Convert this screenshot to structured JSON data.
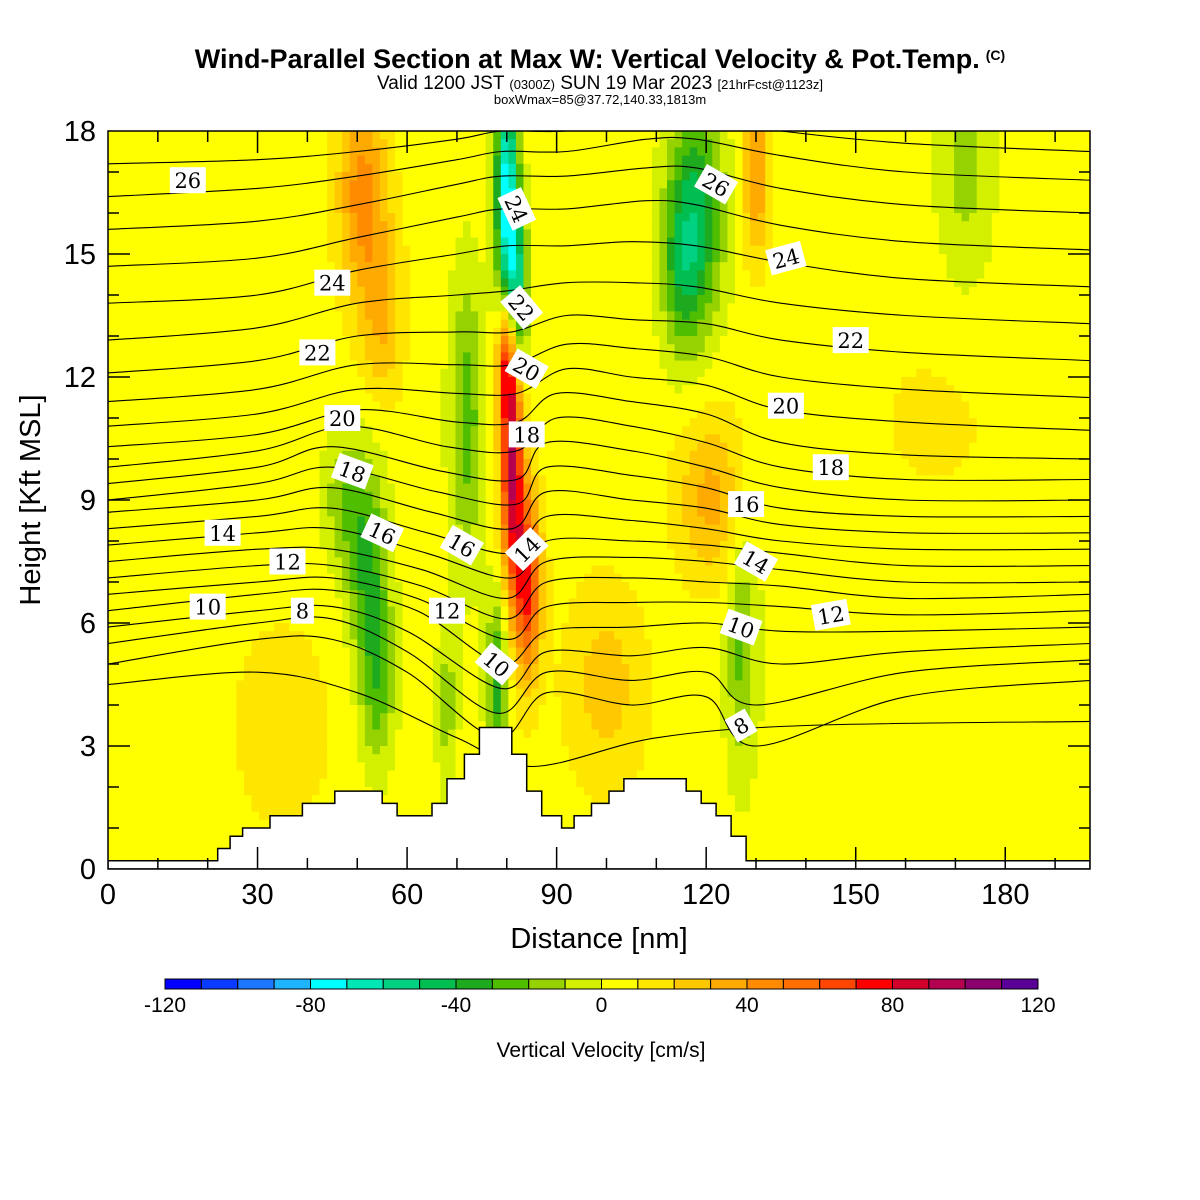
{
  "header": {
    "title": "Wind-Parallel Section at Max W: Vertical Velocity & Pot.Temp.",
    "title_mark": "(C)",
    "valid_prefix": "Valid 1200 JST",
    "valid_utc": "(0300Z)",
    "valid_date": "SUN 19 Mar 2023",
    "forecast_info": "[21hrFcst@1123z]",
    "box_info": "boxWmax=85@37.72,140.33,1813m"
  },
  "chart_data": {
    "type": "heatmap",
    "xlabel": "Distance [nm]",
    "ylabel": "Height [Kft MSL]",
    "xlim": [
      0,
      197
    ],
    "ylim": [
      0,
      18
    ],
    "x_ticks": [
      "0",
      "30",
      "60",
      "90",
      "120",
      "150",
      "180"
    ],
    "x_tick_values": [
      0,
      30,
      60,
      90,
      120,
      150,
      180
    ],
    "y_ticks": [
      "0",
      "3",
      "6",
      "9",
      "12",
      "15",
      "18"
    ],
    "y_tick_values": [
      0,
      3,
      6,
      9,
      12,
      15,
      18
    ],
    "background_w": 5,
    "w_features": [
      {
        "x": 52,
        "y": 7.5,
        "sx": 3,
        "sy": 1.8,
        "v": -35
      },
      {
        "x": 54,
        "y": 4.5,
        "sx": 2.5,
        "sy": 1.5,
        "v": -30
      },
      {
        "x": 47,
        "y": 9.0,
        "sx": 3,
        "sy": 1.2,
        "v": -20
      },
      {
        "x": 72,
        "y": 11.0,
        "sx": 2.5,
        "sy": 2.5,
        "v": -30
      },
      {
        "x": 68,
        "y": 4.0,
        "sx": 1.5,
        "sy": 1.5,
        "v": -20
      },
      {
        "x": 80,
        "y": 16.5,
        "sx": 1.6,
        "sy": 2.0,
        "v": -80
      },
      {
        "x": 82,
        "y": 14.0,
        "sx": 1.6,
        "sy": 1.5,
        "v": -55
      },
      {
        "x": 78,
        "y": 4.5,
        "sx": 1.5,
        "sy": 1.5,
        "v": -40
      },
      {
        "x": 81,
        "y": 10.0,
        "sx": 1.6,
        "sy": 2.0,
        "v": 85
      },
      {
        "x": 84,
        "y": 7.0,
        "sx": 2.0,
        "sy": 1.6,
        "v": 70
      },
      {
        "x": 80,
        "y": 12.5,
        "sx": 1.3,
        "sy": 1.0,
        "v": 60
      },
      {
        "x": 51,
        "y": 16.5,
        "sx": 3.5,
        "sy": 1.8,
        "v": 40
      },
      {
        "x": 55,
        "y": 13.5,
        "sx": 3.0,
        "sy": 1.5,
        "v": 25
      },
      {
        "x": 118,
        "y": 16.0,
        "sx": 4.0,
        "sy": 2.0,
        "v": -45
      },
      {
        "x": 115,
        "y": 14.5,
        "sx": 3.0,
        "sy": 1.5,
        "v": -25
      },
      {
        "x": 127,
        "y": 5.5,
        "sx": 2.0,
        "sy": 2.2,
        "v": -25
      },
      {
        "x": 121,
        "y": 9.0,
        "sx": 5.0,
        "sy": 1.5,
        "v": 30
      },
      {
        "x": 130,
        "y": 17.0,
        "sx": 2.0,
        "sy": 1.5,
        "v": 35
      },
      {
        "x": 100,
        "y": 4.5,
        "sx": 6.0,
        "sy": 1.8,
        "v": 20
      },
      {
        "x": 35,
        "y": 3.5,
        "sx": 10.0,
        "sy": 2.5,
        "v": 8
      },
      {
        "x": 172,
        "y": 17.0,
        "sx": 4.0,
        "sy": 2.0,
        "v": -18
      },
      {
        "x": 150,
        "y": 6.0,
        "sx": 25.0,
        "sy": 3.0,
        "v": -5
      },
      {
        "x": 165,
        "y": 10.5,
        "sx": 12.0,
        "sy": 2.0,
        "v": 8
      }
    ],
    "terrain": {
      "x": [
        0,
        22,
        22,
        24.5,
        24.5,
        27,
        27,
        32.5,
        32.5,
        39,
        39,
        45.5,
        45.5,
        55,
        55,
        58,
        58,
        65,
        65,
        68,
        68,
        71.5,
        71.5,
        74.5,
        74.5,
        81,
        81,
        84,
        84,
        87,
        87,
        91,
        91,
        93.5,
        93.5,
        97,
        97,
        100.5,
        100.5,
        103.5,
        103.5,
        116,
        116,
        119,
        119,
        122,
        122,
        125,
        125,
        128,
        128,
        130,
        197
      ],
      "y": [
        0.2,
        0.2,
        0.5,
        0.5,
        0.8,
        0.8,
        1.0,
        1.0,
        1.3,
        1.3,
        1.6,
        1.6,
        1.9,
        1.9,
        1.6,
        1.6,
        1.3,
        1.3,
        1.6,
        1.6,
        2.2,
        2.2,
        2.8,
        2.8,
        3.45,
        3.45,
        2.8,
        2.8,
        1.9,
        1.9,
        1.3,
        1.3,
        1.0,
        1.0,
        1.3,
        1.3,
        1.6,
        1.6,
        1.9,
        1.9,
        2.2,
        2.2,
        1.9,
        1.9,
        1.6,
        1.6,
        1.3,
        1.3,
        0.8,
        0.8,
        0.2,
        0.2,
        0.2
      ]
    },
    "theta_contours": [
      {
        "x": [
          0,
          30,
          50,
          70,
          85,
          110,
          140,
          197
        ],
        "y": [
          4.5,
          4.8,
          4.3,
          3.2,
          2.5,
          3.2,
          3.5,
          3.6
        ]
      },
      {
        "x": [
          0,
          30,
          45,
          60,
          78,
          88,
          105,
          120,
          130,
          160,
          197
        ],
        "y": [
          5.0,
          5.6,
          5.6,
          4.8,
          3.2,
          4.3,
          4.0,
          4.2,
          3.0,
          4.2,
          4.6
        ]
      },
      {
        "x": [
          0,
          30,
          45,
          60,
          78,
          88,
          105,
          120,
          130,
          160,
          197
        ],
        "y": [
          5.5,
          6.0,
          6.1,
          5.3,
          3.8,
          4.8,
          4.6,
          4.8,
          4.0,
          4.8,
          5.1
        ]
      },
      {
        "x": [
          0,
          30,
          45,
          60,
          79,
          88,
          105,
          120,
          135,
          160,
          197
        ],
        "y": [
          5.9,
          6.3,
          6.4,
          5.8,
          4.4,
          5.3,
          5.2,
          5.4,
          5.0,
          5.3,
          5.5
        ]
      },
      {
        "x": [
          0,
          30,
          45,
          62,
          79,
          88,
          105,
          120,
          135,
          160,
          197
        ],
        "y": [
          6.3,
          6.7,
          6.8,
          6.3,
          5.0,
          5.8,
          5.9,
          6.0,
          5.8,
          5.8,
          5.9
        ]
      },
      {
        "x": [
          0,
          30,
          45,
          62,
          80,
          88,
          105,
          120,
          135,
          160,
          197
        ],
        "y": [
          6.7,
          7.0,
          7.1,
          6.6,
          5.6,
          6.4,
          6.5,
          6.5,
          6.4,
          6.2,
          6.3
        ]
      },
      {
        "x": [
          0,
          30,
          45,
          63,
          80,
          88,
          105,
          120,
          135,
          160,
          197
        ],
        "y": [
          7.1,
          7.4,
          7.4,
          6.9,
          6.1,
          7.0,
          7.1,
          7.0,
          6.9,
          6.6,
          6.7
        ]
      },
      {
        "x": [
          0,
          30,
          45,
          63,
          80,
          88,
          105,
          120,
          135,
          160,
          197
        ],
        "y": [
          7.5,
          7.8,
          7.8,
          7.3,
          6.6,
          7.5,
          7.6,
          7.5,
          7.3,
          7.0,
          7.0
        ]
      },
      {
        "x": [
          0,
          30,
          45,
          64,
          81,
          88,
          105,
          120,
          135,
          160,
          197
        ],
        "y": [
          7.9,
          8.2,
          8.3,
          7.7,
          7.1,
          8.0,
          8.0,
          7.9,
          7.7,
          7.4,
          7.4
        ]
      },
      {
        "x": [
          0,
          30,
          45,
          64,
          81,
          88,
          105,
          120,
          135,
          160,
          197
        ],
        "y": [
          8.3,
          8.6,
          8.8,
          8.2,
          7.7,
          8.6,
          8.5,
          8.3,
          8.0,
          7.8,
          7.8
        ]
      },
      {
        "x": [
          0,
          30,
          45,
          65,
          81,
          88,
          105,
          120,
          135,
          160,
          197
        ],
        "y": [
          8.7,
          9.0,
          9.3,
          8.7,
          8.3,
          9.2,
          9.0,
          8.8,
          8.4,
          8.2,
          8.2
        ]
      },
      {
        "x": [
          0,
          30,
          45,
          66,
          82,
          88,
          105,
          120,
          135,
          160,
          197
        ],
        "y": [
          9.0,
          9.4,
          9.8,
          9.2,
          8.9,
          9.8,
          9.6,
          9.3,
          8.8,
          8.6,
          8.6
        ]
      },
      {
        "x": [
          0,
          30,
          45,
          67,
          82,
          88,
          105,
          120,
          135,
          160,
          197
        ],
        "y": [
          9.4,
          9.8,
          10.3,
          9.7,
          9.5,
          10.4,
          10.2,
          9.8,
          9.3,
          9.0,
          9.0
        ]
      },
      {
        "x": [
          0,
          30,
          48,
          68,
          82,
          90,
          105,
          120,
          135,
          160,
          197
        ],
        "y": [
          9.8,
          10.2,
          10.8,
          10.3,
          10.2,
          11.0,
          10.8,
          10.4,
          9.8,
          9.5,
          9.5
        ]
      },
      {
        "x": [
          0,
          30,
          50,
          70,
          82,
          90,
          105,
          120,
          135,
          160,
          197
        ],
        "y": [
          10.3,
          10.6,
          11.2,
          10.9,
          10.9,
          11.6,
          11.4,
          11.1,
          10.4,
          10.1,
          10.0
        ]
      },
      {
        "x": [
          0,
          30,
          50,
          70,
          82,
          92,
          105,
          120,
          135,
          160,
          197
        ],
        "y": [
          10.8,
          11.1,
          11.7,
          11.6,
          11.6,
          12.2,
          12.0,
          11.8,
          11.2,
          10.9,
          10.7
        ]
      },
      {
        "x": [
          0,
          30,
          50,
          70,
          81,
          92,
          105,
          120,
          135,
          160,
          197
        ],
        "y": [
          11.4,
          11.7,
          12.3,
          12.3,
          12.3,
          12.8,
          12.7,
          12.5,
          12.0,
          11.7,
          11.5
        ]
      },
      {
        "x": [
          0,
          30,
          50,
          70,
          81,
          92,
          105,
          120,
          135,
          160,
          197
        ],
        "y": [
          12.1,
          12.4,
          13.0,
          13.1,
          13.1,
          13.5,
          13.4,
          13.3,
          12.9,
          12.6,
          12.4
        ]
      },
      {
        "x": [
          0,
          30,
          50,
          70,
          80,
          92,
          105,
          118,
          135,
          160,
          197
        ],
        "y": [
          12.9,
          13.2,
          13.8,
          14.0,
          14.1,
          14.3,
          14.3,
          14.2,
          13.8,
          13.5,
          13.3
        ]
      },
      {
        "x": [
          0,
          30,
          50,
          70,
          80,
          92,
          105,
          118,
          135,
          160,
          197
        ],
        "y": [
          13.8,
          14.0,
          14.6,
          15.0,
          15.2,
          15.2,
          15.3,
          15.2,
          14.8,
          14.4,
          14.2
        ]
      },
      {
        "x": [
          0,
          30,
          50,
          70,
          79,
          92,
          108,
          118,
          135,
          160,
          197
        ],
        "y": [
          14.7,
          14.9,
          15.4,
          15.9,
          16.1,
          16.1,
          16.3,
          16.2,
          15.7,
          15.3,
          15.1
        ]
      },
      {
        "x": [
          0,
          30,
          50,
          70,
          79,
          92,
          108,
          118,
          135,
          160,
          197
        ],
        "y": [
          15.6,
          15.8,
          16.2,
          16.7,
          16.9,
          16.9,
          17.1,
          17.1,
          16.6,
          16.2,
          16.0
        ]
      },
      {
        "x": [
          0,
          30,
          50,
          70,
          79,
          92,
          108,
          118,
          135,
          160,
          197
        ],
        "y": [
          16.4,
          16.6,
          16.9,
          17.3,
          17.5,
          17.5,
          17.8,
          17.8,
          17.4,
          17.0,
          16.8
        ]
      },
      {
        "x": [
          0,
          30,
          50,
          70,
          79,
          92,
          108,
          118,
          135,
          160,
          197
        ],
        "y": [
          17.2,
          17.3,
          17.5,
          17.8,
          18.0,
          18.0,
          18.3,
          18.3,
          18.0,
          17.7,
          17.5
        ]
      }
    ],
    "theta_labels": [
      {
        "text": "26",
        "x": 16,
        "y": 16.8,
        "angle": 0
      },
      {
        "text": "24",
        "x": 45,
        "y": 14.3,
        "angle": 0
      },
      {
        "text": "22",
        "x": 42,
        "y": 12.6,
        "angle": 0
      },
      {
        "text": "20",
        "x": 47,
        "y": 11.0,
        "angle": 0
      },
      {
        "text": "18",
        "x": 49,
        "y": 9.7,
        "angle": 20
      },
      {
        "text": "14",
        "x": 23,
        "y": 8.2,
        "angle": 0
      },
      {
        "text": "12",
        "x": 36,
        "y": 7.5,
        "angle": 0
      },
      {
        "text": "10",
        "x": 20,
        "y": 6.4,
        "angle": 0
      },
      {
        "text": "8",
        "x": 39,
        "y": 6.3,
        "angle": 0
      },
      {
        "text": "16",
        "x": 55,
        "y": 8.2,
        "angle": 25
      },
      {
        "text": "16",
        "x": 71,
        "y": 7.9,
        "angle": 30
      },
      {
        "text": "12",
        "x": 68,
        "y": 6.3,
        "angle": 0
      },
      {
        "text": "10",
        "x": 78,
        "y": 5.0,
        "angle": 40
      },
      {
        "text": "24",
        "x": 82,
        "y": 16.1,
        "angle": 65
      },
      {
        "text": "22",
        "x": 83,
        "y": 13.7,
        "angle": 50
      },
      {
        "text": "20",
        "x": 84,
        "y": 12.2,
        "angle": 30
      },
      {
        "text": "18",
        "x": 84,
        "y": 10.6,
        "angle": 0
      },
      {
        "text": "14",
        "x": 84,
        "y": 7.8,
        "angle": -45
      },
      {
        "text": "26",
        "x": 122,
        "y": 16.7,
        "angle": 30
      },
      {
        "text": "24",
        "x": 136,
        "y": 14.9,
        "angle": -15
      },
      {
        "text": "22",
        "x": 149,
        "y": 12.9,
        "angle": 0
      },
      {
        "text": "20",
        "x": 136,
        "y": 11.3,
        "angle": 0
      },
      {
        "text": "18",
        "x": 145,
        "y": 9.8,
        "angle": 0
      },
      {
        "text": "16",
        "x": 128,
        "y": 8.9,
        "angle": 0
      },
      {
        "text": "14",
        "x": 130,
        "y": 7.5,
        "angle": 30
      },
      {
        "text": "12",
        "x": 145,
        "y": 6.2,
        "angle": -10
      },
      {
        "text": "10",
        "x": 127,
        "y": 5.9,
        "angle": 20
      },
      {
        "text": "8",
        "x": 127,
        "y": 3.5,
        "angle": -30
      }
    ],
    "colorbar": {
      "title": "Vertical Velocity [cm/s]",
      "min": -120,
      "max": 120,
      "step": 10,
      "tick_labels": [
        "-120",
        "-80",
        "-40",
        "0",
        "40",
        "80",
        "120"
      ],
      "tick_values": [
        -120,
        -80,
        -40,
        0,
        40,
        80,
        120
      ],
      "colors": [
        "#0000ff",
        "#0a3cff",
        "#1e78ff",
        "#1eb4ff",
        "#00ffff",
        "#00e6b4",
        "#00d282",
        "#00be50",
        "#1eaa1e",
        "#50be00",
        "#96d200",
        "#d2f000",
        "#ffff00",
        "#ffe600",
        "#ffc800",
        "#ffaa00",
        "#ff8c00",
        "#ff6e00",
        "#ff4600",
        "#ff0000",
        "#d2002d",
        "#b40050",
        "#8c006e",
        "#5a0096"
      ]
    }
  }
}
